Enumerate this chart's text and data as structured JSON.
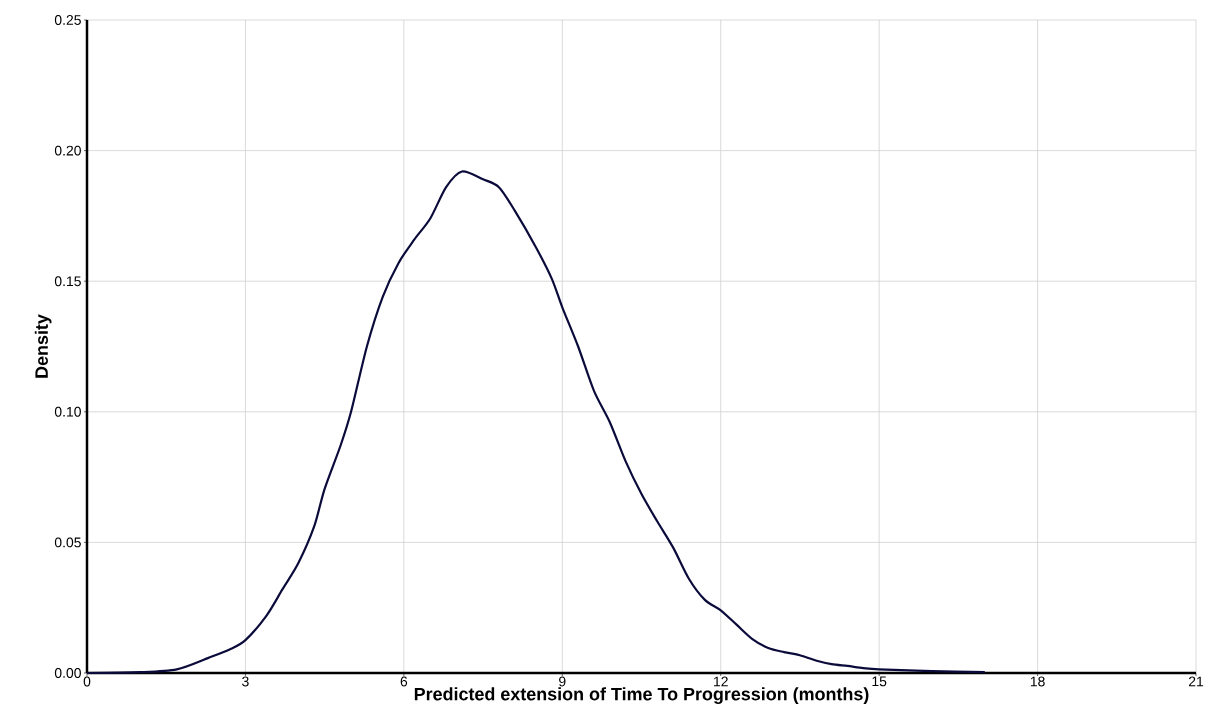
{
  "chart_data": {
    "type": "line",
    "xlabel": "Predicted extension of Time To Progression (months)",
    "ylabel": "Density",
    "x": [
      0,
      1.0,
      1.7,
      2.3,
      2.7,
      3.0,
      3.4,
      3.7,
      4.0,
      4.3,
      4.5,
      4.8,
      5.0,
      5.3,
      5.6,
      5.9,
      6.2,
      6.5,
      6.8,
      7.1,
      7.5,
      7.8,
      8.1,
      8.5,
      8.8,
      9.0,
      9.3,
      9.6,
      9.9,
      10.2,
      10.5,
      10.8,
      11.1,
      11.4,
      11.7,
      12.0,
      12.3,
      12.6,
      12.9,
      13.2,
      13.5,
      13.8,
      14.1,
      14.4,
      14.7,
      15.0,
      16.0,
      17.0
    ],
    "series": [
      {
        "color": "#0b0b3b",
        "values": [
          0,
          0.0003,
          0.0014,
          0.0058,
          0.009,
          0.0126,
          0.022,
          0.032,
          0.042,
          0.056,
          0.0705,
          0.087,
          0.1,
          0.125,
          0.144,
          0.157,
          0.166,
          0.174,
          0.186,
          0.192,
          0.189,
          0.186,
          0.177,
          0.163,
          0.151,
          0.14,
          0.125,
          0.108,
          0.096,
          0.081,
          0.0685,
          0.058,
          0.048,
          0.036,
          0.028,
          0.024,
          0.0185,
          0.013,
          0.0096,
          0.008,
          0.0068,
          0.0048,
          0.0034,
          0.0027,
          0.0019,
          0.0014,
          0.0007,
          0.0003
        ]
      }
    ],
    "xlim": [
      0,
      21
    ],
    "xticks": [
      0,
      3,
      6,
      9,
      12,
      15,
      18,
      21
    ],
    "ylim": [
      0,
      0.25
    ],
    "yticks": [
      {
        "value": 0,
        "label": "0.00"
      },
      {
        "value": 0.05,
        "label": "0.05"
      },
      {
        "value": 0.1,
        "label": "0.10"
      },
      {
        "value": 0.15,
        "label": "0.15"
      },
      {
        "value": 0.2,
        "label": "0.20"
      },
      {
        "value": 0.25,
        "label": "0.25"
      }
    ],
    "grid": true,
    "marker": "none",
    "line_style": "solid"
  }
}
